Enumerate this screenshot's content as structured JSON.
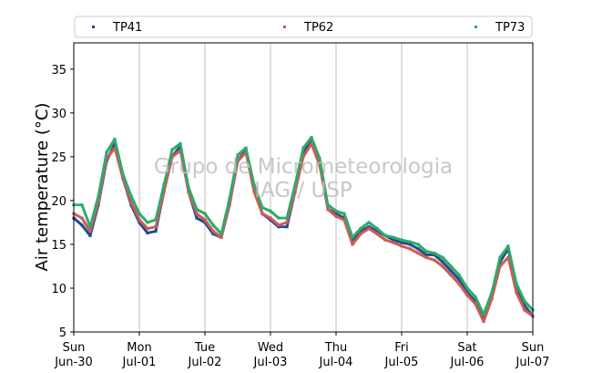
{
  "chart_data": {
    "type": "scatter",
    "ylabel": "Air temperature (°C)",
    "ylim": [
      5,
      38
    ],
    "xlim": [
      "2019-06-30 00:00",
      "2019-07-07 00:00"
    ],
    "yticks": [
      5,
      10,
      15,
      20,
      25,
      30,
      35
    ],
    "xticks": [
      {
        "day": "Sun",
        "date": "Jun-30"
      },
      {
        "day": "Mon",
        "date": "Jul-01"
      },
      {
        "day": "Tue",
        "date": "Jul-02"
      },
      {
        "day": "Wed",
        "date": "Jul-03"
      },
      {
        "day": "Thu",
        "date": "Jul-04"
      },
      {
        "day": "Fri",
        "date": "Jul-05"
      },
      {
        "day": "Sat",
        "date": "Jul-06"
      },
      {
        "day": "Sun",
        "date": "Jul-07"
      }
    ],
    "grid": "vertical",
    "legend_position": "top",
    "watermark": [
      "Grupo de Micrometeorologia",
      "IAG / USP"
    ],
    "series": [
      {
        "name": "TP41",
        "color": "#1f4e8c",
        "x": [
          "2019-06-30 00:00",
          "2019-06-30 03:00",
          "2019-06-30 06:00",
          "2019-06-30 09:00",
          "2019-06-30 12:00",
          "2019-06-30 15:00",
          "2019-06-30 18:00",
          "2019-06-30 21:00",
          "2019-07-01 00:00",
          "2019-07-01 03:00",
          "2019-07-01 06:00",
          "2019-07-01 09:00",
          "2019-07-01 12:00",
          "2019-07-01 15:00",
          "2019-07-01 18:00",
          "2019-07-01 21:00",
          "2019-07-02 00:00",
          "2019-07-02 03:00",
          "2019-07-02 06:00",
          "2019-07-02 09:00",
          "2019-07-02 12:00",
          "2019-07-02 15:00",
          "2019-07-02 18:00",
          "2019-07-02 21:00",
          "2019-07-03 00:00",
          "2019-07-03 03:00",
          "2019-07-03 06:00",
          "2019-07-03 09:00",
          "2019-07-03 12:00",
          "2019-07-03 15:00",
          "2019-07-03 18:00",
          "2019-07-03 21:00",
          "2019-07-04 00:00",
          "2019-07-04 03:00",
          "2019-07-04 06:00",
          "2019-07-04 09:00",
          "2019-07-04 12:00",
          "2019-07-04 15:00",
          "2019-07-04 18:00",
          "2019-07-04 21:00",
          "2019-07-05 00:00",
          "2019-07-05 03:00",
          "2019-07-05 06:00",
          "2019-07-05 09:00",
          "2019-07-05 12:00",
          "2019-07-05 15:00",
          "2019-07-05 18:00",
          "2019-07-05 21:00",
          "2019-07-06 00:00",
          "2019-07-06 03:00",
          "2019-07-06 06:00",
          "2019-07-06 09:00",
          "2019-07-06 12:00",
          "2019-07-06 15:00",
          "2019-07-06 18:00",
          "2019-07-06 21:00",
          "2019-07-07 00:00"
        ],
        "y": [
          18.0,
          17.2,
          16.0,
          19.5,
          24.5,
          26.5,
          22.5,
          19.5,
          17.5,
          16.3,
          16.5,
          21.0,
          25.0,
          26.2,
          21.0,
          18.0,
          17.5,
          16.2,
          15.8,
          19.5,
          24.5,
          25.8,
          21.5,
          18.5,
          17.8,
          17.0,
          17.0,
          21.0,
          25.5,
          26.8,
          24.5,
          19.0,
          18.5,
          18.0,
          15.5,
          16.5,
          17.0,
          16.5,
          16.0,
          15.5,
          15.2,
          15.0,
          14.5,
          13.8,
          13.8,
          13.0,
          12.0,
          11.0,
          9.5,
          8.5,
          6.5,
          9.0,
          13.0,
          14.5,
          10.0,
          8.0,
          6.8
        ]
      },
      {
        "name": "TP62",
        "color": "#cf5a57",
        "x": [
          "2019-06-30 00:00",
          "2019-06-30 03:00",
          "2019-06-30 06:00",
          "2019-06-30 09:00",
          "2019-06-30 12:00",
          "2019-06-30 15:00",
          "2019-06-30 18:00",
          "2019-06-30 21:00",
          "2019-07-01 00:00",
          "2019-07-01 03:00",
          "2019-07-01 06:00",
          "2019-07-01 09:00",
          "2019-07-01 12:00",
          "2019-07-01 15:00",
          "2019-07-01 18:00",
          "2019-07-01 21:00",
          "2019-07-02 00:00",
          "2019-07-02 03:00",
          "2019-07-02 06:00",
          "2019-07-02 09:00",
          "2019-07-02 12:00",
          "2019-07-02 15:00",
          "2019-07-02 18:00",
          "2019-07-02 21:00",
          "2019-07-03 00:00",
          "2019-07-03 03:00",
          "2019-07-03 06:00",
          "2019-07-03 09:00",
          "2019-07-03 12:00",
          "2019-07-03 15:00",
          "2019-07-03 18:00",
          "2019-07-03 21:00",
          "2019-07-04 00:00",
          "2019-07-04 03:00",
          "2019-07-04 06:00",
          "2019-07-04 09:00",
          "2019-07-04 12:00",
          "2019-07-04 15:00",
          "2019-07-04 18:00",
          "2019-07-04 21:00",
          "2019-07-05 00:00",
          "2019-07-05 03:00",
          "2019-07-05 06:00",
          "2019-07-05 09:00",
          "2019-07-05 12:00",
          "2019-07-05 15:00",
          "2019-07-05 18:00",
          "2019-07-05 21:00",
          "2019-07-06 00:00",
          "2019-07-06 03:00",
          "2019-07-06 06:00",
          "2019-07-06 09:00",
          "2019-07-06 12:00",
          "2019-07-06 15:00",
          "2019-07-06 18:00",
          "2019-07-06 21:00",
          "2019-07-07 00:00"
        ],
        "y": [
          18.5,
          18.0,
          16.5,
          19.8,
          24.8,
          26.0,
          22.5,
          19.8,
          17.8,
          16.8,
          17.0,
          21.0,
          25.0,
          25.7,
          21.0,
          18.5,
          17.8,
          16.5,
          15.8,
          19.5,
          24.5,
          25.5,
          21.0,
          18.5,
          18.0,
          17.2,
          17.5,
          21.0,
          25.0,
          26.5,
          24.0,
          19.0,
          18.2,
          17.8,
          15.0,
          16.2,
          16.8,
          16.2,
          15.5,
          15.2,
          14.8,
          14.5,
          14.0,
          13.5,
          13.2,
          12.5,
          11.5,
          10.5,
          9.2,
          8.2,
          6.2,
          8.8,
          12.5,
          13.5,
          9.5,
          7.5,
          6.8
        ]
      },
      {
        "name": "TP73",
        "color": "#2eaa6b",
        "x": [
          "2019-06-30 00:00",
          "2019-06-30 03:00",
          "2019-06-30 06:00",
          "2019-06-30 09:00",
          "2019-06-30 12:00",
          "2019-06-30 15:00",
          "2019-06-30 18:00",
          "2019-06-30 21:00",
          "2019-07-01 00:00",
          "2019-07-01 03:00",
          "2019-07-01 06:00",
          "2019-07-01 09:00",
          "2019-07-01 12:00",
          "2019-07-01 15:00",
          "2019-07-01 18:00",
          "2019-07-01 21:00",
          "2019-07-02 00:00",
          "2019-07-02 03:00",
          "2019-07-02 06:00",
          "2019-07-02 09:00",
          "2019-07-02 12:00",
          "2019-07-02 15:00",
          "2019-07-02 18:00",
          "2019-07-02 21:00",
          "2019-07-03 00:00",
          "2019-07-03 03:00",
          "2019-07-03 06:00",
          "2019-07-03 09:00",
          "2019-07-03 12:00",
          "2019-07-03 15:00",
          "2019-07-03 18:00",
          "2019-07-03 21:00",
          "2019-07-04 00:00",
          "2019-07-04 03:00",
          "2019-07-04 06:00",
          "2019-07-04 09:00",
          "2019-07-04 12:00",
          "2019-07-04 15:00",
          "2019-07-04 18:00",
          "2019-07-04 21:00",
          "2019-07-05 00:00",
          "2019-07-05 03:00",
          "2019-07-05 06:00",
          "2019-07-05 09:00",
          "2019-07-05 12:00",
          "2019-07-05 15:00",
          "2019-07-05 18:00",
          "2019-07-05 21:00",
          "2019-07-06 00:00",
          "2019-07-06 03:00",
          "2019-07-06 06:00",
          "2019-07-06 09:00",
          "2019-07-06 12:00",
          "2019-07-06 15:00",
          "2019-07-06 18:00",
          "2019-07-06 21:00",
          "2019-07-07 00:00"
        ],
        "y": [
          19.5,
          19.5,
          17.0,
          20.5,
          25.5,
          27.0,
          23.0,
          20.5,
          18.5,
          17.5,
          17.8,
          21.8,
          25.8,
          26.5,
          21.5,
          19.0,
          18.5,
          17.2,
          16.2,
          20.2,
          25.2,
          26.0,
          21.8,
          19.2,
          18.8,
          18.0,
          18.0,
          21.8,
          26.0,
          27.2,
          24.8,
          19.5,
          18.8,
          18.5,
          15.8,
          16.8,
          17.5,
          16.8,
          16.0,
          15.8,
          15.5,
          15.3,
          15.0,
          14.2,
          14.0,
          13.5,
          12.5,
          11.5,
          10.0,
          9.0,
          7.0,
          9.5,
          13.5,
          14.8,
          10.5,
          8.5,
          7.5
        ]
      }
    ]
  }
}
